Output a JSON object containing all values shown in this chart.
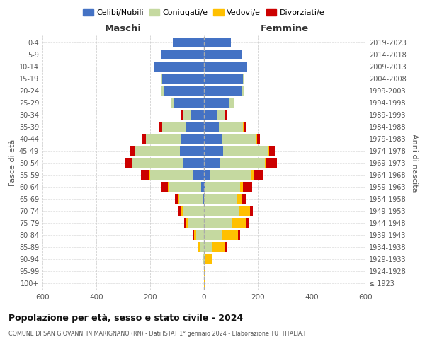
{
  "age_groups": [
    "100+",
    "95-99",
    "90-94",
    "85-89",
    "80-84",
    "75-79",
    "70-74",
    "65-69",
    "60-64",
    "55-59",
    "50-54",
    "45-49",
    "40-44",
    "35-39",
    "30-34",
    "25-29",
    "20-24",
    "15-19",
    "10-14",
    "5-9",
    "0-4"
  ],
  "birth_years": [
    "≤ 1923",
    "1924-1928",
    "1929-1933",
    "1934-1938",
    "1939-1943",
    "1944-1948",
    "1949-1953",
    "1954-1958",
    "1959-1963",
    "1964-1968",
    "1969-1973",
    "1974-1978",
    "1979-1983",
    "1984-1988",
    "1989-1993",
    "1994-1998",
    "1999-2003",
    "2004-2008",
    "2009-2013",
    "2014-2018",
    "2019-2023"
  ],
  "maschi_celibi": [
    0,
    0,
    0,
    0,
    0,
    0,
    0,
    3,
    10,
    40,
    80,
    90,
    85,
    65,
    50,
    110,
    150,
    155,
    185,
    160,
    115
  ],
  "maschi_coniugati": [
    0,
    0,
    2,
    15,
    30,
    60,
    80,
    90,
    120,
    160,
    185,
    165,
    130,
    90,
    30,
    15,
    10,
    5,
    0,
    0,
    0
  ],
  "maschi_vedovi": [
    0,
    0,
    2,
    5,
    8,
    5,
    5,
    5,
    5,
    3,
    3,
    2,
    2,
    0,
    0,
    0,
    0,
    0,
    0,
    0,
    0
  ],
  "maschi_divorziati": [
    0,
    0,
    0,
    3,
    5,
    8,
    10,
    10,
    25,
    30,
    25,
    20,
    15,
    10,
    5,
    0,
    0,
    0,
    0,
    0,
    0
  ],
  "femmine_nubili": [
    0,
    0,
    0,
    0,
    0,
    0,
    0,
    0,
    5,
    20,
    60,
    70,
    65,
    55,
    50,
    95,
    140,
    145,
    160,
    140,
    100
  ],
  "femmine_coniugate": [
    0,
    0,
    5,
    30,
    65,
    105,
    130,
    120,
    130,
    155,
    165,
    170,
    130,
    90,
    30,
    15,
    10,
    5,
    0,
    0,
    0
  ],
  "femmine_vedove": [
    2,
    5,
    25,
    50,
    60,
    50,
    40,
    20,
    10,
    8,
    5,
    3,
    2,
    2,
    0,
    0,
    0,
    0,
    0,
    0,
    0
  ],
  "femmine_divorziate": [
    0,
    0,
    0,
    5,
    8,
    10,
    12,
    15,
    35,
    35,
    40,
    20,
    10,
    8,
    5,
    0,
    0,
    0,
    0,
    0,
    0
  ],
  "color_celibi": "#4472c4",
  "color_coniugati": "#c5d9a0",
  "color_vedovi": "#ffc000",
  "color_divorziati": "#cc0000",
  "title": "Popolazione per età, sesso e stato civile - 2024",
  "subtitle": "COMUNE DI SAN GIOVANNI IN MARIGNANO (RN) - Dati ISTAT 1° gennaio 2024 - Elaborazione TUTTITALIA.IT",
  "xlabel_left": "Maschi",
  "xlabel_right": "Femmine",
  "ylabel_left": "Fasce di età",
  "ylabel_right": "Anni di nascita",
  "xlim": 600,
  "bg_color": "#ffffff",
  "grid_color": "#cccccc"
}
